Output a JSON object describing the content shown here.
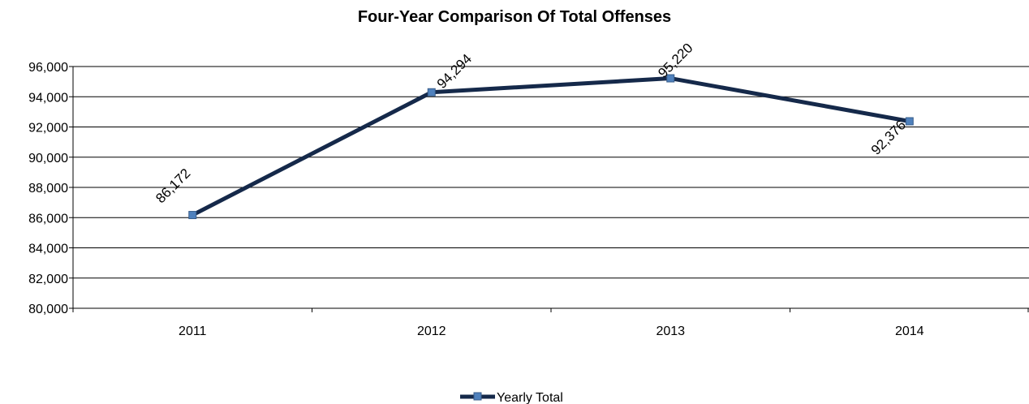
{
  "chart_data": {
    "type": "line",
    "title": "Four-Year Comparison Of Total Offenses",
    "xlabel": "",
    "ylabel": "",
    "categories": [
      "2011",
      "2012",
      "2013",
      "2014"
    ],
    "series": [
      {
        "name": "Yearly Total",
        "values": [
          86172,
          94294,
          95220,
          92376
        ]
      }
    ],
    "data_labels": [
      "86,172",
      "94,294",
      "95,220",
      "92,376"
    ],
    "ylim": [
      80000,
      96000
    ],
    "ytick_labels": [
      "80,000",
      "82,000",
      "84,000",
      "86,000",
      "88,000",
      "90,000",
      "92,000",
      "94,000",
      "96,000"
    ],
    "grid": true,
    "legend": "bottom",
    "colors": {
      "line": "#15294a",
      "marker": "#4f81bd",
      "marker_edge": "#385d8a"
    }
  }
}
